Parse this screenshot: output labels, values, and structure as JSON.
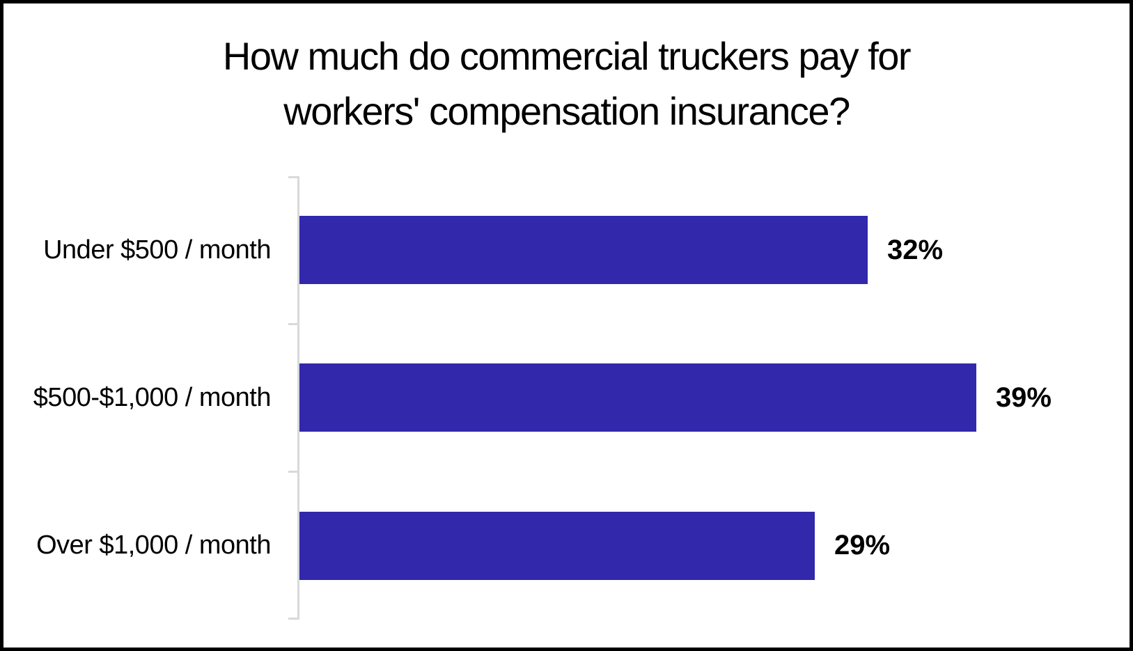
{
  "chart_data": {
    "type": "bar",
    "orientation": "horizontal",
    "title": "How much do commercial truckers pay for workers' compensation insurance?",
    "title_lines": [
      "How much do commercial truckers pay for",
      "workers' compensation insurance?"
    ],
    "categories": [
      "Under $500 / month",
      "$500-$1,000 / month",
      "Over $1,000 / month"
    ],
    "values": [
      32,
      39,
      29
    ],
    "data_labels": [
      "32%",
      "39%",
      "29%"
    ],
    "value_axis": {
      "visible": false,
      "max_shown_value": 39
    },
    "grid": false,
    "legend": false,
    "colors": {
      "bar": "#3228AC",
      "axis_line": "#D9D9D9",
      "text": "#000000",
      "background": "#FFFFFF",
      "frame_border": "#000000"
    }
  }
}
